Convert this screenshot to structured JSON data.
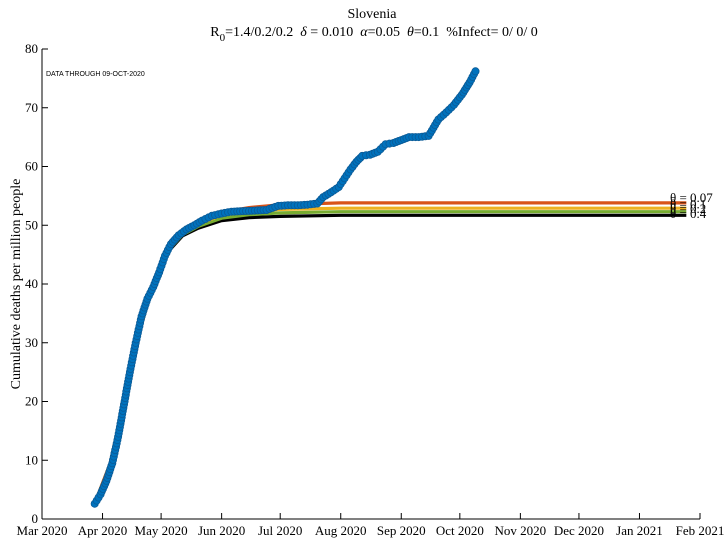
{
  "chart_data": {
    "type": "line",
    "title": "Slovenia",
    "subtitle": {
      "r_label": "R",
      "r_sub": "0",
      "r_values": "=1.4/0.2/0.2",
      "delta_label": "δ",
      "delta_value": " = 0.010",
      "alpha_label": "α",
      "alpha_value": "=0.05",
      "theta_label": "θ",
      "theta_value": "=0.1",
      "infect": "%Infect= 0/ 0/ 0"
    },
    "annotation": "DATA THROUGH 09-OCT-2020",
    "ylabel": "Cumulative deaths per million people",
    "xlabel": "",
    "ylim": [
      0,
      80
    ],
    "yticks": [
      0,
      10,
      20,
      30,
      40,
      50,
      60,
      70,
      80
    ],
    "x_range": [
      "2020-03-01",
      "2021-02-01"
    ],
    "xticks": [
      {
        "date": "2020-03-01",
        "label": "Mar 2020"
      },
      {
        "date": "2020-04-01",
        "label": "Apr 2020"
      },
      {
        "date": "2020-05-01",
        "label": "May 2020"
      },
      {
        "date": "2020-06-01",
        "label": "Jun 2020"
      },
      {
        "date": "2020-07-01",
        "label": "Jul 2020"
      },
      {
        "date": "2020-08-01",
        "label": "Aug 2020"
      },
      {
        "date": "2020-09-01",
        "label": "Sep 2020"
      },
      {
        "date": "2020-10-01",
        "label": "Oct 2020"
      },
      {
        "date": "2020-11-01",
        "label": "Nov 2020"
      },
      {
        "date": "2020-12-01",
        "label": "Dec 2020"
      },
      {
        "date": "2021-01-01",
        "label": "Jan 2021"
      },
      {
        "date": "2021-02-01",
        "label": "Feb 2021"
      }
    ],
    "grid": false,
    "model_series": [
      {
        "label": "θ = 0.07",
        "color": "#D95319",
        "x": [
          "2020-03-28",
          "2020-04-05",
          "2020-04-12",
          "2020-04-20",
          "2020-04-27",
          "2020-05-04",
          "2020-05-12",
          "2020-05-20",
          "2020-06-01",
          "2020-06-15",
          "2020-07-01",
          "2020-08-01",
          "2021-01-25"
        ],
        "y": [
          2.6,
          9.5,
          20.0,
          32.0,
          40.0,
          45.5,
          48.8,
          50.5,
          52.2,
          53.0,
          53.5,
          53.8,
          53.8
        ]
      },
      {
        "label": "θ = 0.1",
        "color": "#EDB120",
        "x": [
          "2020-03-28",
          "2020-04-05",
          "2020-04-12",
          "2020-04-20",
          "2020-04-27",
          "2020-05-04",
          "2020-05-12",
          "2020-05-20",
          "2020-06-01",
          "2020-06-15",
          "2020-07-01",
          "2020-08-01",
          "2021-01-25"
        ],
        "y": [
          2.6,
          9.5,
          20.0,
          32.0,
          40.0,
          45.5,
          48.6,
          50.2,
          51.7,
          52.3,
          52.7,
          52.9,
          52.9
        ]
      },
      {
        "label": "θ = 0.2",
        "color": "#77AC30",
        "x": [
          "2020-03-28",
          "2020-04-05",
          "2020-04-12",
          "2020-04-20",
          "2020-04-27",
          "2020-05-04",
          "2020-05-12",
          "2020-05-20",
          "2020-06-01",
          "2020-06-15",
          "2020-07-01",
          "2020-08-01",
          "2021-01-25"
        ],
        "y": [
          2.6,
          9.5,
          20.0,
          32.0,
          40.0,
          45.5,
          48.4,
          49.8,
          51.2,
          51.8,
          52.1,
          52.3,
          52.3
        ]
      },
      {
        "label": "θ = 0.4",
        "color": "#000000",
        "x": [
          "2020-03-28",
          "2020-04-05",
          "2020-04-12",
          "2020-04-20",
          "2020-04-27",
          "2020-05-04",
          "2020-05-12",
          "2020-05-20",
          "2020-06-01",
          "2020-06-15",
          "2020-07-01",
          "2020-08-01",
          "2021-01-25"
        ],
        "y": [
          2.6,
          9.5,
          20.0,
          32.0,
          40.0,
          45.3,
          48.2,
          49.5,
          50.8,
          51.3,
          51.5,
          51.7,
          51.7
        ]
      }
    ],
    "observed": {
      "color": "#0072BD",
      "x": [
        "2020-03-28",
        "2020-03-31",
        "2020-04-03",
        "2020-04-06",
        "2020-04-09",
        "2020-04-12",
        "2020-04-15",
        "2020-04-18",
        "2020-04-21",
        "2020-04-24",
        "2020-04-27",
        "2020-04-30",
        "2020-05-03",
        "2020-05-06",
        "2020-05-10",
        "2020-05-14",
        "2020-05-18",
        "2020-05-22",
        "2020-05-27",
        "2020-06-01",
        "2020-06-06",
        "2020-06-12",
        "2020-06-18",
        "2020-06-24",
        "2020-06-30",
        "2020-07-05",
        "2020-07-10",
        "2020-07-15",
        "2020-07-20",
        "2020-07-23",
        "2020-07-27",
        "2020-07-31",
        "2020-08-03",
        "2020-08-06",
        "2020-08-09",
        "2020-08-12",
        "2020-08-16",
        "2020-08-20",
        "2020-08-24",
        "2020-08-28",
        "2020-09-01",
        "2020-09-05",
        "2020-09-10",
        "2020-09-15",
        "2020-09-20",
        "2020-09-24",
        "2020-09-28",
        "2020-10-02",
        "2020-10-06",
        "2020-10-09"
      ],
      "y": [
        2.6,
        4.2,
        6.5,
        9.5,
        14.0,
        19.5,
        25.0,
        30.0,
        34.5,
        37.5,
        39.5,
        42.0,
        44.8,
        46.8,
        48.3,
        49.3,
        50.0,
        50.8,
        51.6,
        52.0,
        52.3,
        52.4,
        52.5,
        52.6,
        53.3,
        53.4,
        53.4,
        53.5,
        53.7,
        54.8,
        55.6,
        56.5,
        58.0,
        59.5,
        60.8,
        61.8,
        62.0,
        62.5,
        63.8,
        64.0,
        64.5,
        65.0,
        65.0,
        65.2,
        68.0,
        69.2,
        70.5,
        72.2,
        74.3,
        76.2
      ]
    }
  }
}
